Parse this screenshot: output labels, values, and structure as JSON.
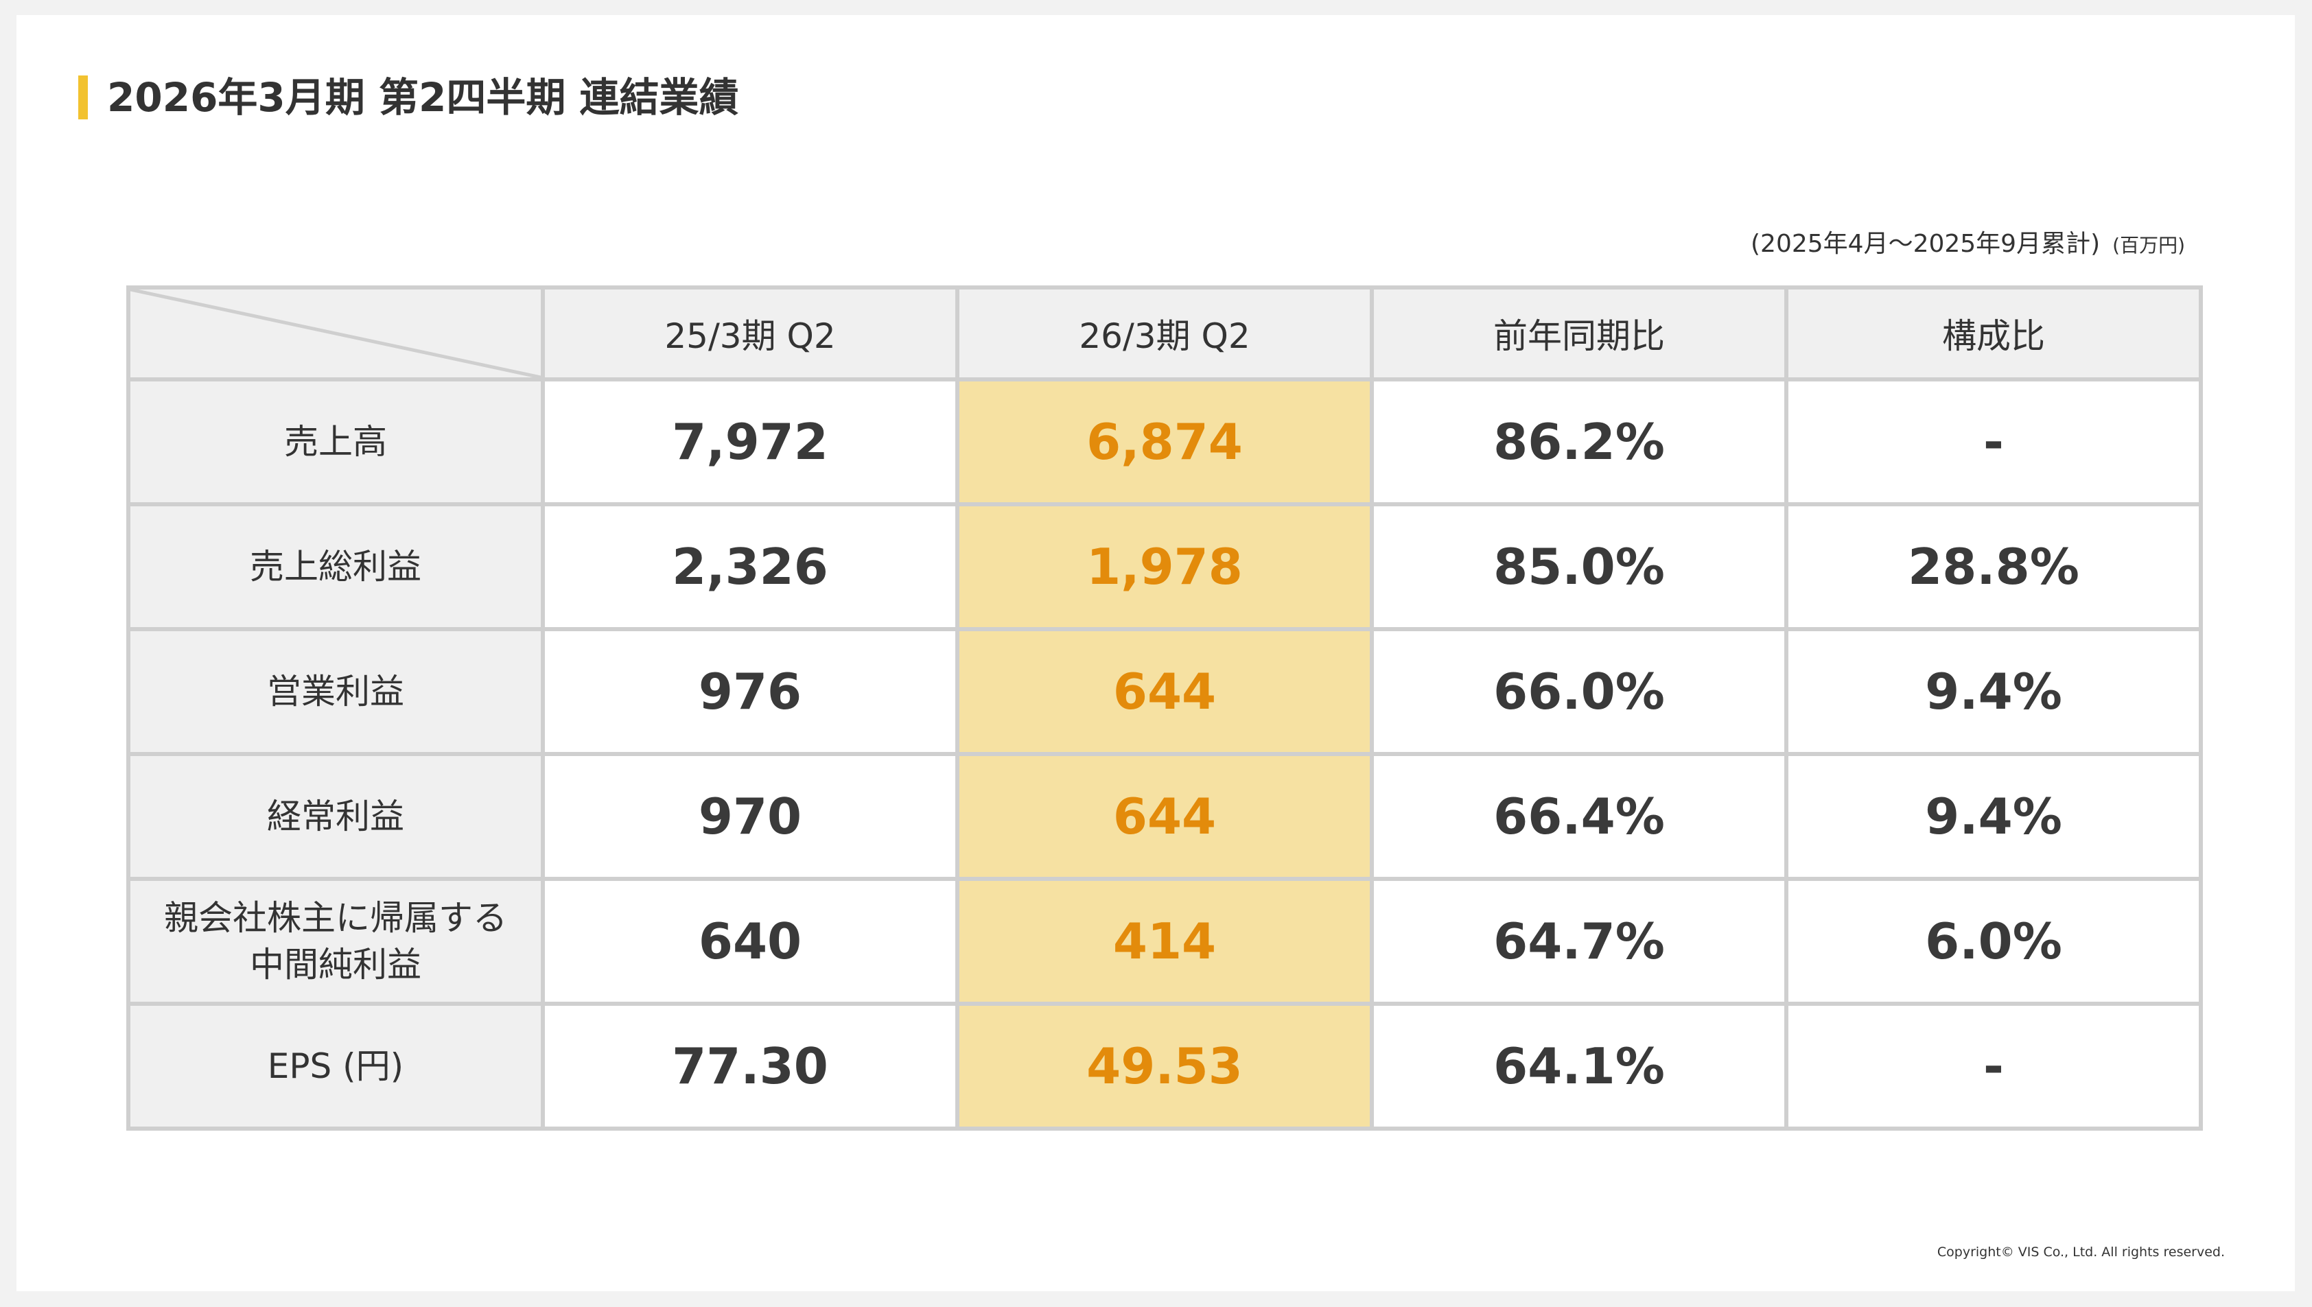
{
  "title": "2026年3月期 第2四半期 連結業績",
  "period": "(2025年4月〜2025年9月累計)",
  "unit": "(百万円)",
  "colors": {
    "accent_bar": "#f2c230",
    "highlight_bg": "#f6e1a2",
    "highlight_text": "#e38b0b"
  },
  "table": {
    "columns": [
      "25/3期 Q2",
      "26/3期 Q2",
      "前年同期比",
      "構成比"
    ],
    "rows": [
      {
        "label": "売上高",
        "values": [
          "7,972",
          "6,874",
          "86.2%",
          "-"
        ]
      },
      {
        "label": "売上総利益",
        "values": [
          "2,326",
          "1,978",
          "85.0%",
          "28.8%"
        ]
      },
      {
        "label": "営業利益",
        "values": [
          "976",
          "644",
          "66.0%",
          "9.4%"
        ]
      },
      {
        "label": "経常利益",
        "values": [
          "970",
          "644",
          "66.4%",
          "9.4%"
        ]
      },
      {
        "label_line1": "親会社株主に帰属する",
        "label_line2": "中間純利益",
        "values": [
          "640",
          "414",
          "64.7%",
          "6.0%"
        ]
      },
      {
        "label": "EPS (円)",
        "values": [
          "77.30",
          "49.53",
          "64.1%",
          "-"
        ]
      }
    ]
  },
  "copyright": "Copyright© VIS Co., Ltd. All rights reserved."
}
